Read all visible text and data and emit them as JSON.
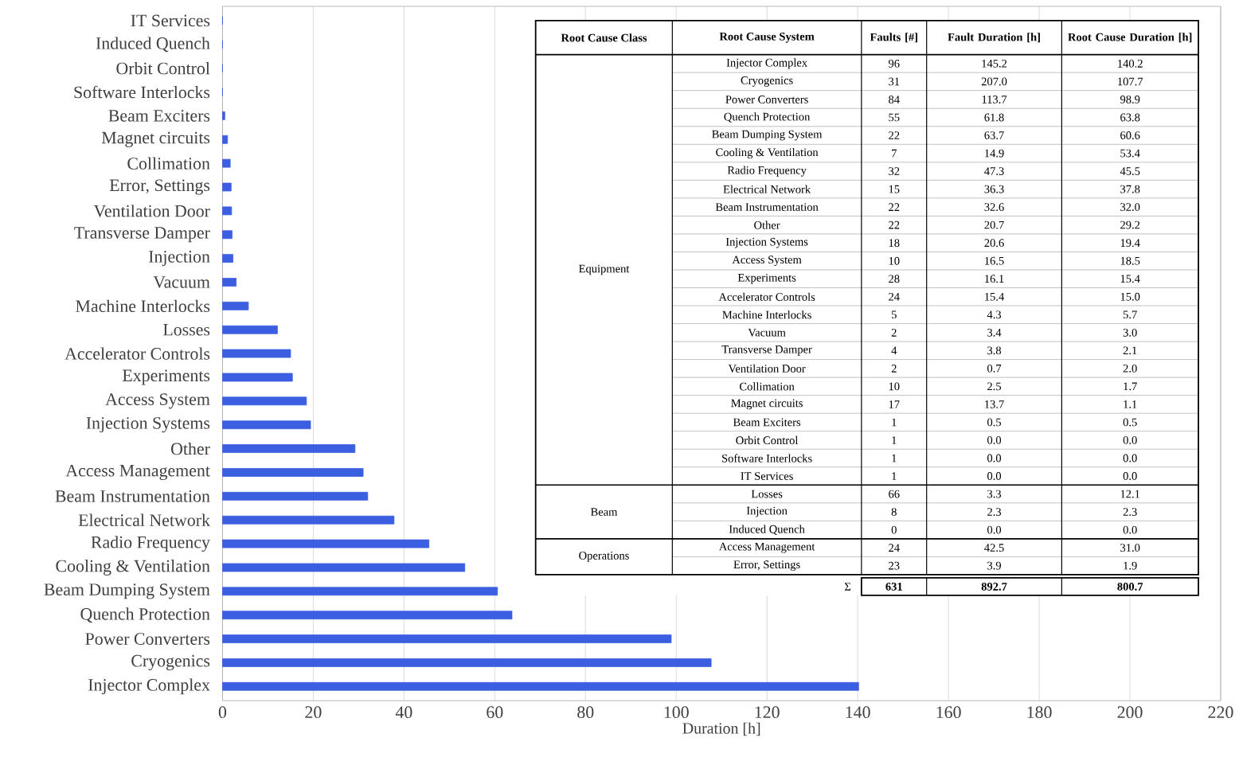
{
  "chart_data": [
    {
      "type": "bar",
      "orientation": "horizontal",
      "xlabel": "Duration  [h]",
      "grid": "x",
      "xlim": [
        0,
        220
      ],
      "xticks": [
        0,
        20,
        40,
        60,
        80,
        100,
        120,
        140,
        160,
        180,
        200,
        220
      ],
      "color": "#3b5fe0",
      "categories": [
        "IT Services",
        "Induced Quench",
        "Orbit Control",
        "Software Interlocks",
        "Beam Exciters",
        "Magnet circuits",
        "Collimation",
        "Error, Settings",
        "Ventilation Door",
        "Transverse Damper",
        "Injection",
        "Vacuum",
        "Machine Interlocks",
        "Losses",
        "Accelerator Controls",
        "Experiments",
        "Access System",
        "Injection Systems",
        "Other",
        "Access Management",
        "Beam Instrumentation",
        "Electrical Network",
        "Radio Frequency",
        "Cooling & Ventilation",
        "Beam Dumping System",
        "Quench Protection",
        "Power Converters",
        "Cryogenics",
        "Injector Complex"
      ],
      "values": [
        0.0,
        0.0,
        0.0,
        0.0,
        0.5,
        1.1,
        1.7,
        1.9,
        2.0,
        2.1,
        2.3,
        3.0,
        5.7,
        12.1,
        15.0,
        15.4,
        18.5,
        19.4,
        29.2,
        31.0,
        32.0,
        37.8,
        45.5,
        53.4,
        60.6,
        63.8,
        98.9,
        107.7,
        140.2
      ]
    },
    {
      "type": "other",
      "data_labels": true,
      "categories": [
        "Injector Complex",
        "Cryogenics",
        "Power Converters",
        "Quench Protection",
        "Beam Dumping System",
        "Cooling & Ventilation",
        "Radio Frequency",
        "Electrical Network",
        "Beam Instrumentation",
        "Other",
        "Injection Systems",
        "Access System",
        "Experiments",
        "Accelerator Controls",
        "Machine Interlocks",
        "Vacuum",
        "Transverse Damper",
        "Ventilation Door",
        "Collimation",
        "Magnet circuits",
        "Beam Exciters",
        "Orbit Control",
        "Software Interlocks",
        "IT Services",
        "Losses",
        "Injection",
        "Induced Quench",
        "Access Management",
        "Error, Settings"
      ],
      "series": [
        {
          "name": "Faults [#]",
          "values": [
            96,
            31,
            84,
            55,
            22,
            7,
            32,
            15,
            22,
            22,
            18,
            10,
            28,
            24,
            5,
            2,
            4,
            2,
            10,
            17,
            1,
            1,
            1,
            1,
            66,
            8,
            0,
            24,
            23
          ]
        },
        {
          "name": "Fault Duration [h]",
          "values": [
            145.2,
            207.0,
            113.7,
            61.8,
            63.7,
            14.9,
            47.3,
            36.3,
            32.6,
            20.7,
            20.6,
            16.5,
            16.1,
            15.4,
            4.3,
            3.4,
            3.8,
            0.7,
            2.5,
            13.7,
            0.5,
            0.0,
            0.0,
            0.0,
            3.3,
            2.3,
            0.0,
            42.5,
            3.9
          ],
          "value_labels": [
            "145.2",
            "207.0",
            "113.7",
            "61.8",
            "63.7",
            "14.9",
            "47.3",
            "36.3",
            "32.6",
            "20.7",
            "20.6",
            "16.5",
            "16.1",
            "15.4",
            "4.3",
            "3.4",
            "3.8",
            "0.7",
            "2.5",
            "13.7",
            "0.5",
            "0.0",
            "0.0",
            "0.0",
            "3.3",
            "2.3",
            "0.0",
            "42.5",
            "3.9"
          ]
        },
        {
          "name": "Root Cause Duration [h]",
          "values": [
            140.2,
            107.7,
            98.9,
            63.8,
            60.6,
            53.4,
            45.5,
            37.8,
            32.0,
            29.2,
            19.4,
            18.5,
            15.4,
            15.0,
            5.7,
            3.0,
            2.1,
            2.0,
            1.7,
            1.1,
            0.5,
            0.0,
            0.0,
            0.0,
            12.1,
            2.3,
            0.0,
            31.0,
            1.9
          ],
          "value_labels": [
            "140.2",
            "107.7",
            "98.9",
            "63.8",
            "60.6",
            "53.4",
            "45.5",
            "37.8",
            "32.0",
            "29.2",
            "19.4",
            "18.5",
            "15.4",
            "15.0",
            "5.7",
            "3.0",
            "2.1",
            "2.0",
            "1.7",
            "1.1",
            "0.5",
            "0.0",
            "0.0",
            "0.0",
            "12.1",
            "2.3",
            "0.0",
            "31.0",
            "1.9"
          ]
        }
      ],
      "totals": [
        "631",
        "892.7",
        "800.7"
      ],
      "annotations": [
        "Root Cause Class",
        "Root Cause System",
        "Σ",
        {
          "text": "Equipment",
          "y": "Injector Complex"
        },
        {
          "text": "Beam",
          "y": "Losses"
        },
        {
          "text": "Operations",
          "y": "Access Management"
        }
      ]
    }
  ]
}
